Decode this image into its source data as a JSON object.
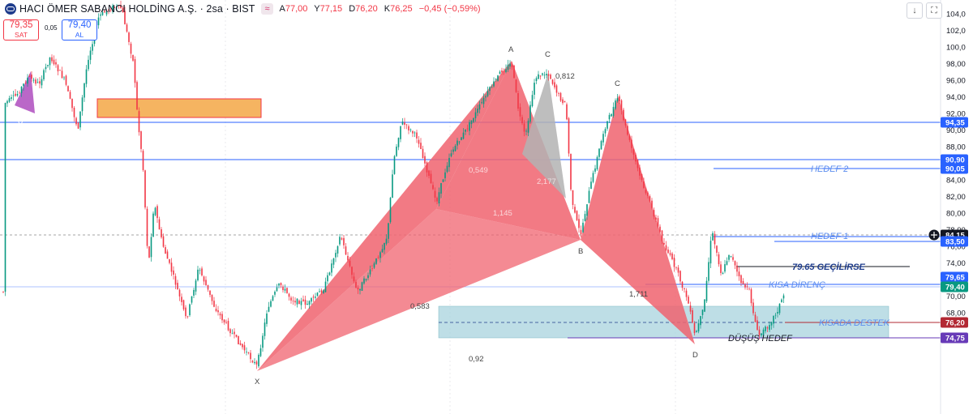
{
  "header": {
    "title": "HACI ÖMER SABANCI HOLDİNG A.Ş. · 2sa · BIST",
    "chip": "≈",
    "o_label": "A",
    "o_value": "77,00",
    "h_label": "Y",
    "h_value": "77,15",
    "l_label": "D",
    "l_value": "76,20",
    "c_label": "K",
    "c_value": "76,25",
    "change": "−0,45 (−0,59%)"
  },
  "trade": {
    "sell_price": "79,35",
    "sell_label": "SAT",
    "spread": "0,05",
    "buy_price": "79,40",
    "buy_label": "AL"
  },
  "toolbar": {
    "down_icon": "↓",
    "fullscreen_icon": "⛶"
  },
  "price_axis": {
    "ticks": [
      "104,0",
      "102,0",
      "100,0",
      "98,00",
      "96,00",
      "94,00",
      "92,00",
      "90,00",
      "88,00",
      "86,00",
      "84,00",
      "82,00",
      "80,00",
      "78,00",
      "76,00",
      "74,00",
      "72,00",
      "70,00",
      "68,00"
    ],
    "price_labels": [
      {
        "text": "94,35",
        "bg": "#2962ff"
      },
      {
        "text": "90,90",
        "bg": "#2962ff"
      },
      {
        "text": "90,05",
        "bg": "#2962ff"
      },
      {
        "text": "84,15",
        "bg": "#131722"
      },
      {
        "text": "83,50",
        "bg": "#2962ff"
      },
      {
        "text": "79,65",
        "bg": "#2962ff"
      },
      {
        "text": "79,40",
        "bg": "#089981"
      },
      {
        "text": "76,20",
        "bg": "#b22833"
      },
      {
        "text": "74,75",
        "bg": "#673ab7"
      }
    ],
    "crosshair_icon": "crosshair-plus-icon"
  },
  "annotations": {
    "hedef2": "HEDEF 2",
    "hedef1": "HEDEF 1",
    "gecilirse": "79.65 GEÇİLİRSE",
    "kisa_direnc": "KISA DİRENÇ",
    "kisada_destek": "KISADA DESTEK",
    "dusus_hedef": "DÜŞÜŞ HEDEF"
  },
  "pattern_labels": {
    "x": "X",
    "a": "A",
    "b": "B",
    "c1": "C",
    "c2": "C",
    "d": "D",
    "r_0925": "0,925",
    "r_0812": "0,812",
    "r_0549": "0,549",
    "r_1145": "1,145",
    "r_2177": "2,177",
    "r_0583": "0,583",
    "r_092": "0,92",
    "r_1711": "1,711",
    "l_x2": "X"
  },
  "colors": {
    "pattern_fill": "#f0636f",
    "gray_fill": "#b3b3b3",
    "orange_box": "#f5b461",
    "support_box": "#a8d3dd",
    "line_blue": "#2962ff",
    "up_candle": "#089981",
    "down_candle": "#f23645"
  }
}
